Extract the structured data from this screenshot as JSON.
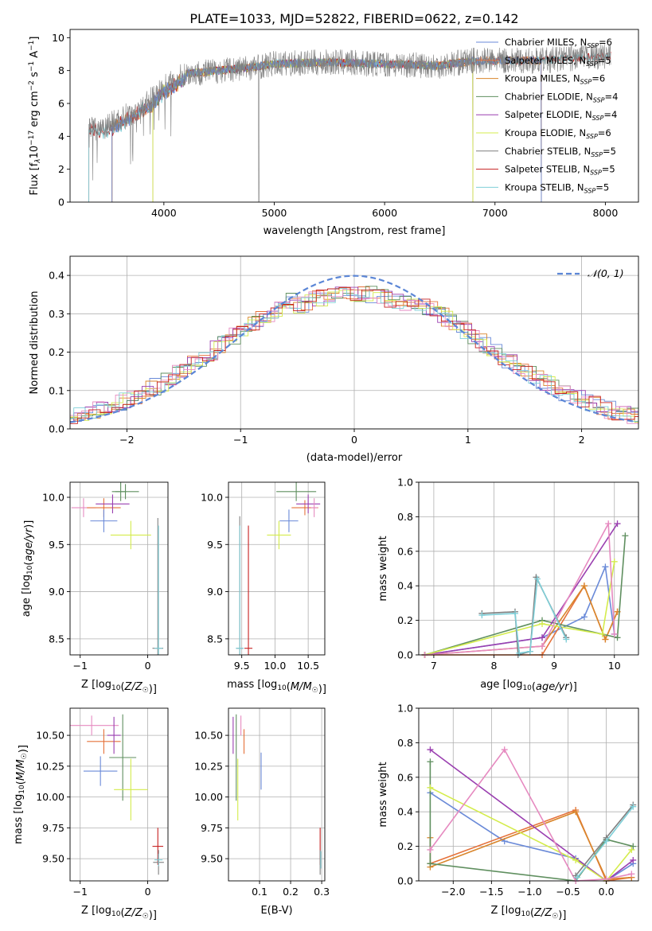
{
  "figure": {
    "title": "PLATE=1033, MJD=52822, FIBERID=0622, z=0.142"
  },
  "colors": {
    "chabrier_miles": "#6a8ad8",
    "salpeter_miles": "#e5713a",
    "kroupa_miles": "#d9862c",
    "chabrier_elodie": "#5f8f5f",
    "salpeter_elodie": "#9a3fb0",
    "kroupa_elodie": "#d4ec4c",
    "chabrier_stelib": "#7f7f7f",
    "salpeter_stelib": "#c62020",
    "kroupa_stelib": "#7fcfd8",
    "pink": "#e68ac0",
    "normal_curve": "#5b86d6",
    "grid": "#b0b0b0"
  },
  "chart_data": [
    {
      "id": "spectrum",
      "type": "line",
      "xlabel": "wavelength [Angstrom, rest frame]",
      "ylabel_parts": [
        "Flux [f",
        "λ",
        "10",
        "−17",
        " erg cm",
        "−2",
        " s",
        "−1",
        " A",
        "−1",
        "]"
      ],
      "xlim": [
        3150,
        8300
      ],
      "ylim": [
        0,
        10.5
      ],
      "xticks": [
        4000,
        5000,
        6000,
        7000,
        8000
      ],
      "yticks": [
        0,
        2,
        4,
        6,
        8,
        10
      ],
      "grid": false,
      "legend": "top-right",
      "legend_entries": [
        {
          "key": "chabrier_miles",
          "label": "Chabrier MILES, N",
          "sub": "SSP",
          "tail": "=6"
        },
        {
          "key": "salpeter_miles",
          "label": "Salpeter MILES, N",
          "sub": "SSP",
          "tail": "=5"
        },
        {
          "key": "kroupa_miles",
          "label": "Kroupa MILES, N",
          "sub": "SSP",
          "tail": "=6"
        },
        {
          "key": "chabrier_elodie",
          "label": "Chabrier ELODIE, N",
          "sub": "SSP",
          "tail": "=4"
        },
        {
          "key": "salpeter_elodie",
          "label": "Salpeter ELODIE, N",
          "sub": "SSP",
          "tail": "=4"
        },
        {
          "key": "kroupa_elodie",
          "label": "Kroupa ELODIE, N",
          "sub": "SSP",
          "tail": "=6"
        },
        {
          "key": "chabrier_stelib",
          "label": "Chabrier STELIB, N",
          "sub": "SSP",
          "tail": "=5"
        },
        {
          "key": "salpeter_stelib",
          "label": "Salpeter STELIB, N",
          "sub": "SSP",
          "tail": "=5"
        },
        {
          "key": "kroupa_stelib",
          "label": "Kroupa STELIB, N",
          "sub": "SSP",
          "tail": "=5"
        }
      ],
      "continuum": [
        [
          3320,
          4.6
        ],
        [
          3450,
          4.6
        ],
        [
          3600,
          5.0
        ],
        [
          3750,
          5.6
        ],
        [
          3900,
          6.3
        ],
        [
          4000,
          7.0
        ],
        [
          4200,
          7.8
        ],
        [
          4500,
          8.0
        ],
        [
          4800,
          8.2
        ],
        [
          5000,
          8.4
        ],
        [
          5500,
          8.5
        ],
        [
          6000,
          8.4
        ],
        [
          6500,
          8.3
        ],
        [
          6800,
          8.6
        ],
        [
          7000,
          8.6
        ],
        [
          7400,
          8.6
        ],
        [
          7800,
          8.8
        ],
        [
          8050,
          8.9
        ]
      ]
    },
    {
      "id": "residuals",
      "type": "line",
      "xlabel": "(data-model)/error",
      "ylabel": "Normed distribution",
      "xlim": [
        -2.5,
        2.5
      ],
      "ylim": [
        0,
        0.45
      ],
      "xticks": [
        -2,
        -1,
        0,
        1,
        2
      ],
      "yticks": [
        0.0,
        0.1,
        0.2,
        0.3,
        0.4
      ],
      "grid": true,
      "legend": "top-right",
      "legend_label": "𝒩(0, 1)",
      "normal": {
        "mu": 0,
        "sigma": 1
      }
    },
    {
      "id": "age_vs_Z",
      "type": "scatter",
      "xlabel": "Z [log10(Z/Z☉)]",
      "ylabel": "age  [log10(age/yr)]",
      "xlim": [
        -1.15,
        0.3
      ],
      "ylim": [
        8.33,
        10.16
      ],
      "xticks": [
        -1,
        0
      ],
      "yticks": [
        8.5,
        9.0,
        9.5,
        10.0
      ],
      "grid": true,
      "points": [
        {
          "c": "pink",
          "x": -0.95,
          "y": 9.89,
          "ex": 0.18,
          "ey": 0.1
        },
        {
          "c": "salpeter_miles",
          "x": -0.65,
          "y": 9.89,
          "ex": 0.25,
          "ey": 0.1
        },
        {
          "c": "chabrier_miles",
          "x": -0.65,
          "y": 9.75,
          "ex": 0.2,
          "ey": 0.12
        },
        {
          "c": "chabrier_elodie",
          "x": -0.4,
          "y": 10.06,
          "ex": 0.08,
          "ey": 0.1
        },
        {
          "c": "chabrier_elodie",
          "x": -0.33,
          "y": 10.06,
          "ex": 0.2,
          "ey": 0.08
        },
        {
          "c": "salpeter_elodie",
          "x": -0.52,
          "y": 9.93,
          "ex": 0.25,
          "ey": 0.1
        },
        {
          "c": "kroupa_elodie",
          "x": -0.25,
          "y": 9.6,
          "ex": 0.3,
          "ey": 0.15
        },
        {
          "c": "chabrier_stelib",
          "x": 0.15,
          "y": 8.4,
          "ex": 0.08,
          "ey": 1.38
        },
        {
          "c": "kroupa_stelib",
          "x": 0.16,
          "y": 8.4,
          "ex": 0.06,
          "ey": 1.3
        }
      ]
    },
    {
      "id": "age_vs_mass",
      "type": "scatter",
      "xlabel": "mass [log10(M/M☉)]",
      "ylabel": "",
      "xlim": [
        9.3,
        10.75
      ],
      "ylim": [
        8.33,
        10.16
      ],
      "xticks": [
        9.5,
        10.0,
        10.5
      ],
      "yticks": [
        8.5,
        9.0,
        9.5,
        10.0
      ],
      "grid": true,
      "points": [
        {
          "c": "chabrier_stelib",
          "x": 9.47,
          "y": 8.4,
          "ex": 0.05,
          "ey": 1.4
        },
        {
          "c": "kroupa_stelib",
          "x": 9.47,
          "y": 8.4,
          "ex": 0.06,
          "ey": 1.3
        },
        {
          "c": "salpeter_stelib",
          "x": 9.6,
          "y": 8.4,
          "ex": 0.06,
          "ey": 1.3
        },
        {
          "c": "kroupa_elodie",
          "x": 10.06,
          "y": 9.6,
          "ex": 0.18,
          "ey": 0.15
        },
        {
          "c": "chabrier_miles",
          "x": 10.21,
          "y": 9.75,
          "ex": 0.14,
          "ey": 0.12
        },
        {
          "c": "chabrier_elodie",
          "x": 10.32,
          "y": 10.06,
          "ex": 0.3,
          "ey": 0.1
        },
        {
          "c": "salpeter_miles",
          "x": 10.45,
          "y": 9.89,
          "ex": 0.2,
          "ey": 0.08
        },
        {
          "c": "salpeter_elodie",
          "x": 10.5,
          "y": 9.93,
          "ex": 0.18,
          "ey": 0.1
        },
        {
          "c": "pink",
          "x": 10.59,
          "y": 9.89,
          "ex": 0.05,
          "ey": 0.1
        }
      ]
    },
    {
      "id": "weight_vs_age",
      "type": "line",
      "xlabel": "age  [log10(age/yr)]",
      "ylabel": "mass weight",
      "xlim": [
        6.75,
        10.4
      ],
      "ylim": [
        0,
        1
      ],
      "xticks": [
        7,
        8,
        9,
        10
      ],
      "yticks": [
        0.0,
        0.2,
        0.4,
        0.6,
        0.8,
        1.0
      ],
      "grid": true,
      "series": [
        {
          "c": "chabrier_miles",
          "x": [
            6.85,
            8.8,
            9.5,
            9.85,
            10.0
          ],
          "y": [
            0.0,
            0.1,
            0.22,
            0.51,
            0.12
          ]
        },
        {
          "c": "salpeter_miles",
          "x": [
            6.85,
            8.8,
            9.5,
            9.85,
            10.05
          ],
          "y": [
            0.0,
            0.0,
            0.4,
            0.09,
            0.25
          ]
        },
        {
          "c": "kroupa_miles",
          "x": [
            6.85,
            8.8,
            9.5,
            9.85,
            10.05
          ],
          "y": [
            0.0,
            0.05,
            0.4,
            0.09,
            0.25
          ]
        },
        {
          "c": "chabrier_elodie",
          "x": [
            6.85,
            8.8,
            10.05,
            10.18
          ],
          "y": [
            0.0,
            0.2,
            0.1,
            0.69
          ]
        },
        {
          "c": "salpeter_elodie",
          "x": [
            6.85,
            8.8,
            10.05
          ],
          "y": [
            0.0,
            0.1,
            0.76
          ]
        },
        {
          "c": "kroupa_elodie",
          "x": [
            6.85,
            8.8,
            9.8,
            10.0
          ],
          "y": [
            0.0,
            0.18,
            0.12,
            0.54
          ]
        },
        {
          "c": "pink",
          "x": [
            6.85,
            8.8,
            9.9,
            10.0
          ],
          "y": [
            0.0,
            0.05,
            0.76,
            0.12
          ]
        },
        {
          "c": "chabrier_stelib",
          "x": [
            7.8,
            8.35,
            8.4,
            8.6,
            8.7,
            9.2
          ],
          "y": [
            0.24,
            0.25,
            0.0,
            0.02,
            0.45,
            0.1
          ]
        },
        {
          "c": "kroupa_stelib",
          "x": [
            7.8,
            8.35,
            8.42,
            8.6,
            8.72,
            9.2
          ],
          "y": [
            0.23,
            0.24,
            0.01,
            0.02,
            0.44,
            0.09
          ]
        }
      ]
    },
    {
      "id": "mass_vs_Z",
      "type": "scatter",
      "xlabel": "Z [log10(Z/Z☉)]",
      "ylabel": "mass [log10(M/M☉)]",
      "xlim": [
        -1.15,
        0.3
      ],
      "ylim": [
        9.32,
        10.72
      ],
      "xticks": [
        -1,
        0
      ],
      "yticks": [
        9.5,
        9.75,
        10.0,
        10.25,
        10.5
      ],
      "grid": true,
      "points": [
        {
          "c": "pink",
          "x": -0.83,
          "y": 10.58,
          "ex": 0.4,
          "ey": 0.08
        },
        {
          "c": "salpeter_miles",
          "x": -0.65,
          "y": 10.45,
          "ex": 0.25,
          "ey": 0.1
        },
        {
          "c": "chabrier_miles",
          "x": -0.7,
          "y": 10.21,
          "ex": 0.25,
          "ey": 0.12
        },
        {
          "c": "salpeter_elodie",
          "x": -0.5,
          "y": 10.5,
          "ex": 0.1,
          "ey": 0.15
        },
        {
          "c": "chabrier_elodie",
          "x": -0.37,
          "y": 10.32,
          "ex": 0.2,
          "ey": 0.35
        },
        {
          "c": "kroupa_elodie",
          "x": -0.25,
          "y": 10.06,
          "ex": 0.25,
          "ey": 0.25
        },
        {
          "c": "salpeter_stelib",
          "x": 0.15,
          "y": 9.6,
          "ex": 0.08,
          "ey": 0.15
        },
        {
          "c": "chabrier_stelib",
          "x": 0.16,
          "y": 9.47,
          "ex": 0.08,
          "ey": 0.1
        },
        {
          "c": "kroupa_stelib",
          "x": 0.16,
          "y": 9.49,
          "ex": 0.06,
          "ey": 0.05
        }
      ]
    },
    {
      "id": "mass_vs_EBV",
      "type": "scatter",
      "xlabel": "E(B-V)",
      "ylabel": "",
      "xlim": [
        0.0,
        0.31
      ],
      "ylim": [
        9.32,
        10.72
      ],
      "xticks": [
        0.1,
        0.2,
        0.3
      ],
      "yticks": [
        9.5,
        9.75,
        10.0,
        10.25,
        10.5
      ],
      "grid": true,
      "points": [
        {
          "c": "salpeter_elodie",
          "x": 0.015,
          "y": 10.5,
          "ex": 0,
          "ey": 0.15
        },
        {
          "c": "chabrier_elodie",
          "x": 0.025,
          "y": 10.32,
          "ex": 0,
          "ey": 0.35
        },
        {
          "c": "kroupa_elodie",
          "x": 0.03,
          "y": 10.06,
          "ex": 0,
          "ey": 0.25
        },
        {
          "c": "pink",
          "x": 0.04,
          "y": 10.58,
          "ex": 0,
          "ey": 0.08
        },
        {
          "c": "salpeter_miles",
          "x": 0.05,
          "y": 10.45,
          "ex": 0,
          "ey": 0.1
        },
        {
          "c": "chabrier_miles",
          "x": 0.105,
          "y": 10.21,
          "ex": 0,
          "ey": 0.15
        },
        {
          "c": "salpeter_stelib",
          "x": 0.295,
          "y": 9.6,
          "ex": 0,
          "ey": 0.15
        },
        {
          "c": "chabrier_stelib",
          "x": 0.295,
          "y": 9.47,
          "ex": 0,
          "ey": 0.1
        },
        {
          "c": "kroupa_stelib",
          "x": 0.297,
          "y": 9.49,
          "ex": 0,
          "ey": 0.07
        }
      ]
    },
    {
      "id": "weight_vs_Z",
      "type": "line",
      "xlabel": "Z [log10(Z/Z☉)]",
      "ylabel": "mass weight",
      "xlim": [
        -2.45,
        0.42
      ],
      "ylim": [
        0,
        1
      ],
      "xticks": [
        -2.0,
        -1.5,
        -1.0,
        -0.5,
        0.0
      ],
      "yticks": [
        0.0,
        0.2,
        0.4,
        0.6,
        0.8,
        1.0
      ],
      "grid": true,
      "series": [
        {
          "c": "chabrier_miles",
          "x": [
            -2.3,
            -1.33,
            -0.4,
            0.0,
            0.35
          ],
          "y": [
            0.51,
            0.23,
            0.13,
            0.0,
            0.1
          ]
        },
        {
          "c": "salpeter_miles",
          "x": [
            -2.3,
            -0.4,
            0.0,
            0.33
          ],
          "y": [
            0.1,
            0.41,
            0.0,
            0.02
          ]
        },
        {
          "c": "kroupa_miles",
          "x": [
            -2.3,
            -2.3,
            -0.4,
            0.0,
            0.33
          ],
          "y": [
            0.25,
            0.08,
            0.4,
            0.01,
            0.02
          ]
        },
        {
          "c": "chabrier_elodie",
          "x": [
            -2.3,
            -2.3,
            -0.4,
            0.0,
            0.35
          ],
          "y": [
            0.69,
            0.1,
            0.0,
            0.24,
            0.2
          ]
        },
        {
          "c": "salpeter_elodie",
          "x": [
            -2.3,
            0.0,
            0.35
          ],
          "y": [
            0.76,
            0.0,
            0.12
          ]
        },
        {
          "c": "kroupa_elodie",
          "x": [
            -2.3,
            -0.4,
            0.0,
            0.33
          ],
          "y": [
            0.54,
            0.12,
            0.0,
            0.18
          ]
        },
        {
          "c": "pink",
          "x": [
            -2.3,
            -1.33,
            -0.4,
            0.0,
            0.33
          ],
          "y": [
            0.18,
            0.76,
            0.0,
            0.01,
            0.04
          ]
        },
        {
          "c": "chabrier_stelib",
          "x": [
            -0.4,
            0.0,
            0.35
          ],
          "y": [
            0.03,
            0.25,
            0.44
          ]
        },
        {
          "c": "kroupa_stelib",
          "x": [
            -0.38,
            0.0,
            0.35
          ],
          "y": [
            0.02,
            0.23,
            0.43
          ]
        }
      ]
    }
  ]
}
